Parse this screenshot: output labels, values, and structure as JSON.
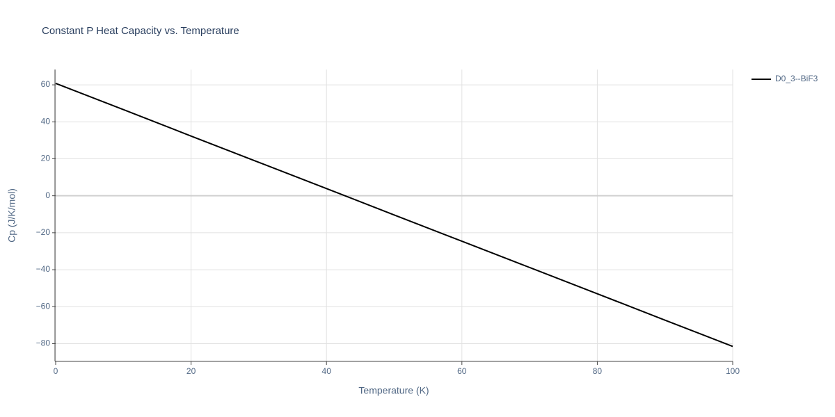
{
  "chart_data": {
    "type": "line",
    "title": "Constant P Heat Capacity vs. Temperature",
    "xlabel": "Temperature (K)",
    "ylabel": "Cp (J/K/mol)",
    "x": [
      0,
      10,
      20,
      30,
      40,
      50,
      60,
      70,
      80,
      90,
      100
    ],
    "series": [
      {
        "name": "D0_3--BiF3",
        "color": "#000000",
        "values": [
          60.8,
          46.6,
          32.3,
          18.1,
          3.9,
          -10.4,
          -24.6,
          -38.8,
          -53.0,
          -67.3,
          -81.5
        ]
      }
    ],
    "xlim": [
      0,
      100
    ],
    "xticks": [
      0,
      20,
      40,
      60,
      80,
      100
    ],
    "ylim": [
      -89.6,
      68.3
    ],
    "yticks": [
      60,
      40,
      20,
      0,
      {
        "value": -20,
        "label": "−20"
      },
      {
        "value": -40,
        "label": "−40"
      },
      {
        "value": -60,
        "label": "−60"
      },
      {
        "value": -80,
        "label": "−80"
      }
    ],
    "grid": true,
    "legend": "right"
  }
}
